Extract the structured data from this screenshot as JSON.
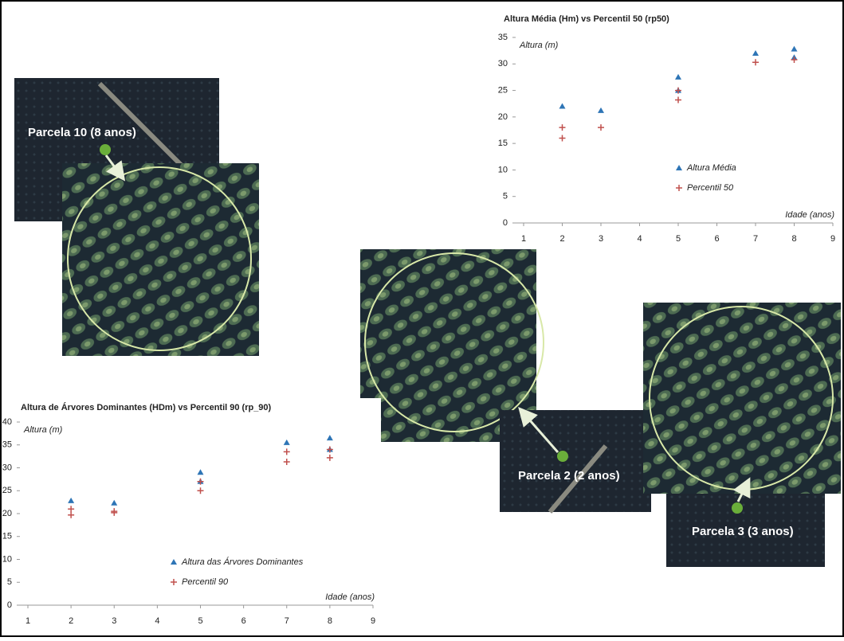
{
  "chart_data": [
    {
      "type": "scatter",
      "title": "Altura Média (Hm) vs Percentil 50 (rp50)",
      "y_label": "Altura (m)",
      "x_label": "Idade (anos)",
      "xlim": [
        1,
        9
      ],
      "xticks": [
        1,
        2,
        3,
        4,
        5,
        6,
        7,
        8,
        9
      ],
      "ylim": [
        0,
        35
      ],
      "yticks": [
        0,
        5,
        10,
        15,
        20,
        25,
        30,
        35
      ],
      "series": [
        {
          "name": "Altura Média",
          "color": "#2e75b6",
          "marker": "triangle",
          "x": [
            2,
            3,
            5,
            5,
            7,
            8,
            8
          ],
          "values": [
            22,
            21.2,
            27.5,
            25,
            32,
            32.8,
            31.2
          ]
        },
        {
          "name": "Percentil 50",
          "color": "#c0504d",
          "marker": "plus",
          "x": [
            2,
            2,
            3,
            5,
            5,
            7,
            8
          ],
          "values": [
            18,
            16,
            18,
            25,
            23.2,
            30.3,
            30.8
          ]
        }
      ]
    },
    {
      "type": "scatter",
      "title": "Altura de Árvores Dominantes (HDm) vs Percentil 90 (rp_90)",
      "y_label": "Altura (m)",
      "x_label": "Idade (anos)",
      "xlim": [
        1,
        9
      ],
      "xticks": [
        1,
        2,
        3,
        4,
        5,
        6,
        7,
        8,
        9
      ],
      "ylim": [
        0,
        40
      ],
      "yticks": [
        0,
        5,
        10,
        15,
        20,
        25,
        30,
        35,
        40
      ],
      "series": [
        {
          "name": "Altura das Árvores Dominantes",
          "color": "#2e75b6",
          "marker": "triangle",
          "x": [
            2,
            3,
            5,
            5,
            7,
            8,
            8
          ],
          "values": [
            22.8,
            22.3,
            29,
            27,
            35.5,
            36.5,
            34
          ]
        },
        {
          "name": "Percentil 90",
          "color": "#c0504d",
          "marker": "plus",
          "x": [
            2,
            2,
            3,
            3,
            5,
            5,
            7,
            7,
            8,
            8
          ],
          "values": [
            21,
            19.7,
            20.5,
            20.2,
            27,
            25,
            33.5,
            31.3,
            34,
            32.2
          ]
        }
      ]
    }
  ],
  "photo_labels": [
    "Parcela 10 (8 anos)",
    "Parcela 2 (2 anos)",
    "Parcela 3 (3 anos)"
  ]
}
